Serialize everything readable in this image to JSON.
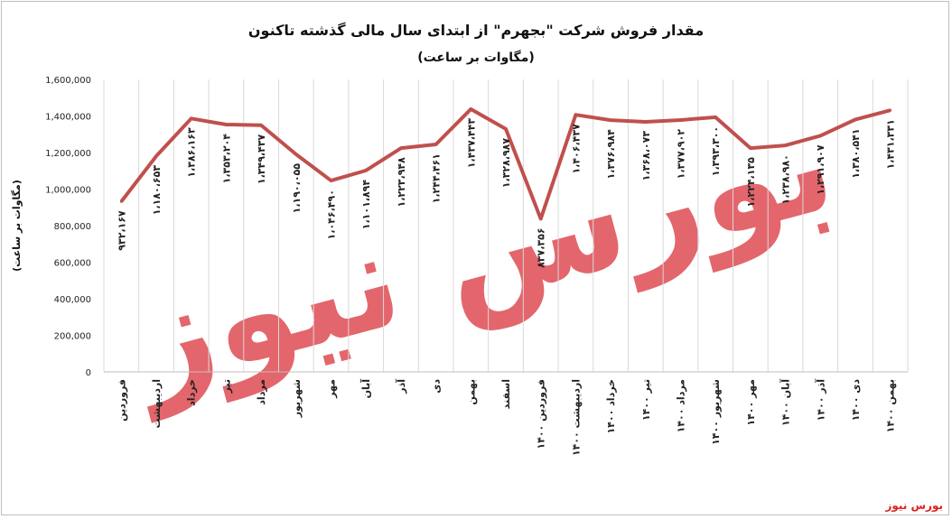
{
  "chart_data": {
    "type": "line",
    "title": "مقدار فروش شرکت \"بجهرم\" از ابتدای سال مالی گذشته تاکنون",
    "subtitle": "(مگاوات بر ساعت)",
    "ylabel": "(مگاوات بر ساعت)",
    "xlabel": "",
    "ylim": [
      0,
      1600000
    ],
    "y_ticks": [
      0,
      200000,
      400000,
      600000,
      800000,
      1000000,
      1200000,
      1400000,
      1600000
    ],
    "y_tick_labels": [
      "0",
      "200,000",
      "400,000",
      "600,000",
      "800,000",
      "1,000,000",
      "1,200,000",
      "1,400,000",
      "1,600,000"
    ],
    "grid": "vertical",
    "legend": "none",
    "color": "#c0504d",
    "categories": [
      "فروردین",
      "اردیبهشت",
      "خرداد",
      "تیر",
      "مرداد",
      "شهریور",
      "مهر",
      "آبان",
      "آذر",
      "دی",
      "بهمن",
      "اسفند",
      "فروردین ۱۴۰۰",
      "اردیبهشت ۱۴۰۰",
      "خرداد ۱۴۰۰",
      "تیر ۱۴۰۰",
      "مرداد ۱۴۰۰",
      "شهریور ۱۴۰۰",
      "مهر ۱۴۰۰",
      "آبان ۱۴۰۰",
      "آذر ۱۴۰۰",
      "دی ۱۴۰۰",
      "بهمن ۱۴۰۰"
    ],
    "values": [
      932167,
      1180653,
      1386163,
      1353204,
      1349437,
      1190055,
      1046490,
      1101894,
      1223948,
      1244461,
      1437443,
      1328987,
      837356,
      1406437,
      1376984,
      1368073,
      1377902,
      1393300,
      1224135,
      1238980,
      1291907,
      1380541,
      1431331
    ],
    "data_labels": [
      "۹۳۲،۱۶۷",
      "۱،۱۸۰،۶۵۳",
      "۱،۳۸۶،۱۶۳",
      "۱،۳۵۳،۲۰۴",
      "۱،۳۴۹،۴۳۷",
      "۱،۱۹۰،۰۵۵",
      "۱،۰۴۶،۴۹۰",
      "۱،۱۰۱،۸۹۴",
      "۱،۲۲۳،۹۴۸",
      "۱،۲۴۴،۴۶۱",
      "۱،۴۳۷،۴۴۳",
      "۱،۳۲۸،۹۸۷",
      "۸۳۷،۳۵۶",
      "۱،۴۰۶،۴۳۷",
      "۱،۳۷۶،۹۸۴",
      "۱،۳۶۸،۰۷۳",
      "۱،۳۷۷،۹۰۲",
      "۱،۳۹۳،۳۰۰",
      "۱،۲۲۴،۱۳۵",
      "۱،۲۳۸،۹۸۰",
      "۱،۲۹۱،۹۰۷",
      "۱،۳۸۰،۵۴۱",
      "۱،۴۳۱،۳۳۱"
    ],
    "watermark": "بورس نیوز"
  },
  "footer": {
    "brand": "بورس نیوز"
  }
}
